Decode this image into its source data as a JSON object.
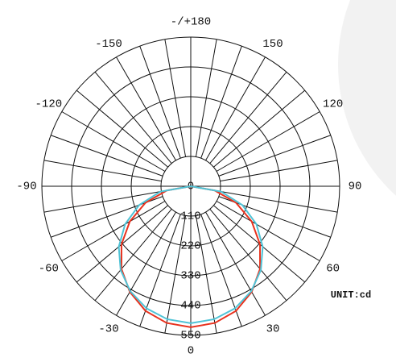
{
  "chart_data": {
    "type": "polar",
    "annotation": "UNIT:cd",
    "theta": [
      -90,
      -80,
      -70,
      -60,
      -50,
      -40,
      -30,
      -20,
      -10,
      0,
      10,
      20,
      30,
      40,
      50,
      60,
      70,
      80,
      90
    ],
    "series": [
      {
        "color": "#e8321e",
        "values": [
          0,
          90,
          178,
          260,
          334,
          398,
          450,
          489,
          512,
          520,
          512,
          489,
          450,
          398,
          334,
          260,
          178,
          90,
          0
        ]
      },
      {
        "color": "#4fc3d6",
        "values": [
          0,
          114,
          203,
          280,
          347,
          403,
          447,
          479,
          498,
          505,
          498,
          479,
          447,
          403,
          347,
          280,
          203,
          114,
          0
        ]
      }
    ],
    "rlim": [
      0,
      550
    ],
    "rticks": [
      0,
      110,
      220,
      330,
      440,
      550
    ],
    "thetaticks": [
      0,
      30,
      60,
      90,
      120,
      150,
      {
        "value": 180,
        "label": "-/+180"
      },
      -150,
      -120,
      -90,
      -60,
      -30
    ],
    "grid": true
  }
}
